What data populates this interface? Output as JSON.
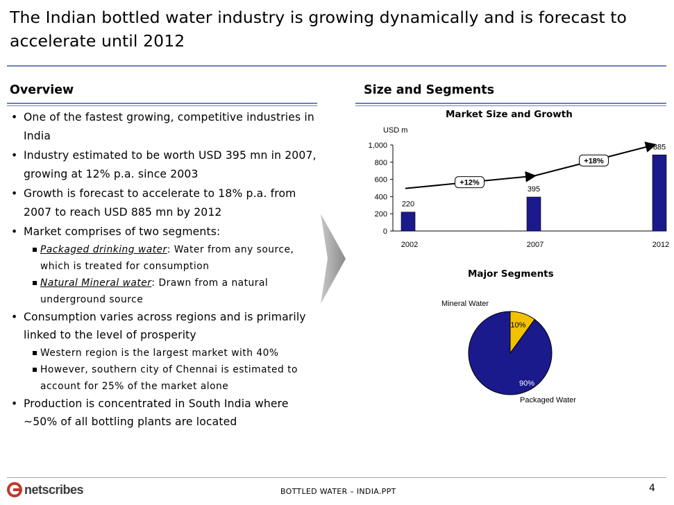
{
  "title": "The Indian bottled water industry is growing dynamically and is forecast to accelerate until 2012",
  "overview": {
    "heading": "Overview",
    "items": [
      {
        "text": "One of the fastest growing, competitive industries in India"
      },
      {
        "text": "Industry estimated to be worth USD 395 mn in 2007, growing at 12% p.a. since 2003"
      },
      {
        "text": "Growth is forecast to accelerate to 18% p.a. from 2007 to reach USD 885 mn by 2012"
      },
      {
        "text": "Market comprises of two segments:"
      },
      {
        "term": "Packaged drinking water",
        "rest": ": Water from any source, which is treated for consumption"
      },
      {
        "term": "Natural Mineral water",
        "rest": ": Drawn from a natural underground source"
      },
      {
        "text": "Consumption varies across regions and is primarily linked to the level of prosperity"
      },
      {
        "text": "Western region is the largest market with 40%"
      },
      {
        "text": "However, southern city of Chennai is estimated to account for 25% of the market alone"
      },
      {
        "text": "Production is concentrated in South India where ~50% of all bottling plants are located"
      }
    ]
  },
  "segments_heading": "Size and Segments",
  "chart_data": [
    {
      "type": "bar",
      "title": "Market Size and Growth",
      "ylabel": "USD m",
      "categories": [
        "2002",
        "2007",
        "2012"
      ],
      "values": [
        220,
        395,
        885
      ],
      "value_labels": [
        "220",
        "395",
        "885"
      ],
      "yticks": [
        "0",
        "200",
        "400",
        "600",
        "800",
        "1,000"
      ],
      "ylim": [
        0,
        1000
      ],
      "growth_labels": [
        "+12%",
        "+18%"
      ],
      "bar_color": "#1a1a8c"
    },
    {
      "type": "pie",
      "title": "Major Segments",
      "labels": [
        "Mineral Water",
        "Packaged Water"
      ],
      "values": [
        10,
        90
      ],
      "value_labels": [
        "10%",
        "90%"
      ],
      "colors": [
        "#f2c200",
        "#1a1a8c"
      ]
    }
  ],
  "footer": {
    "center": "BOTTLED WATER – INDIA.PPT",
    "page": "4",
    "logo": "netscribes"
  }
}
